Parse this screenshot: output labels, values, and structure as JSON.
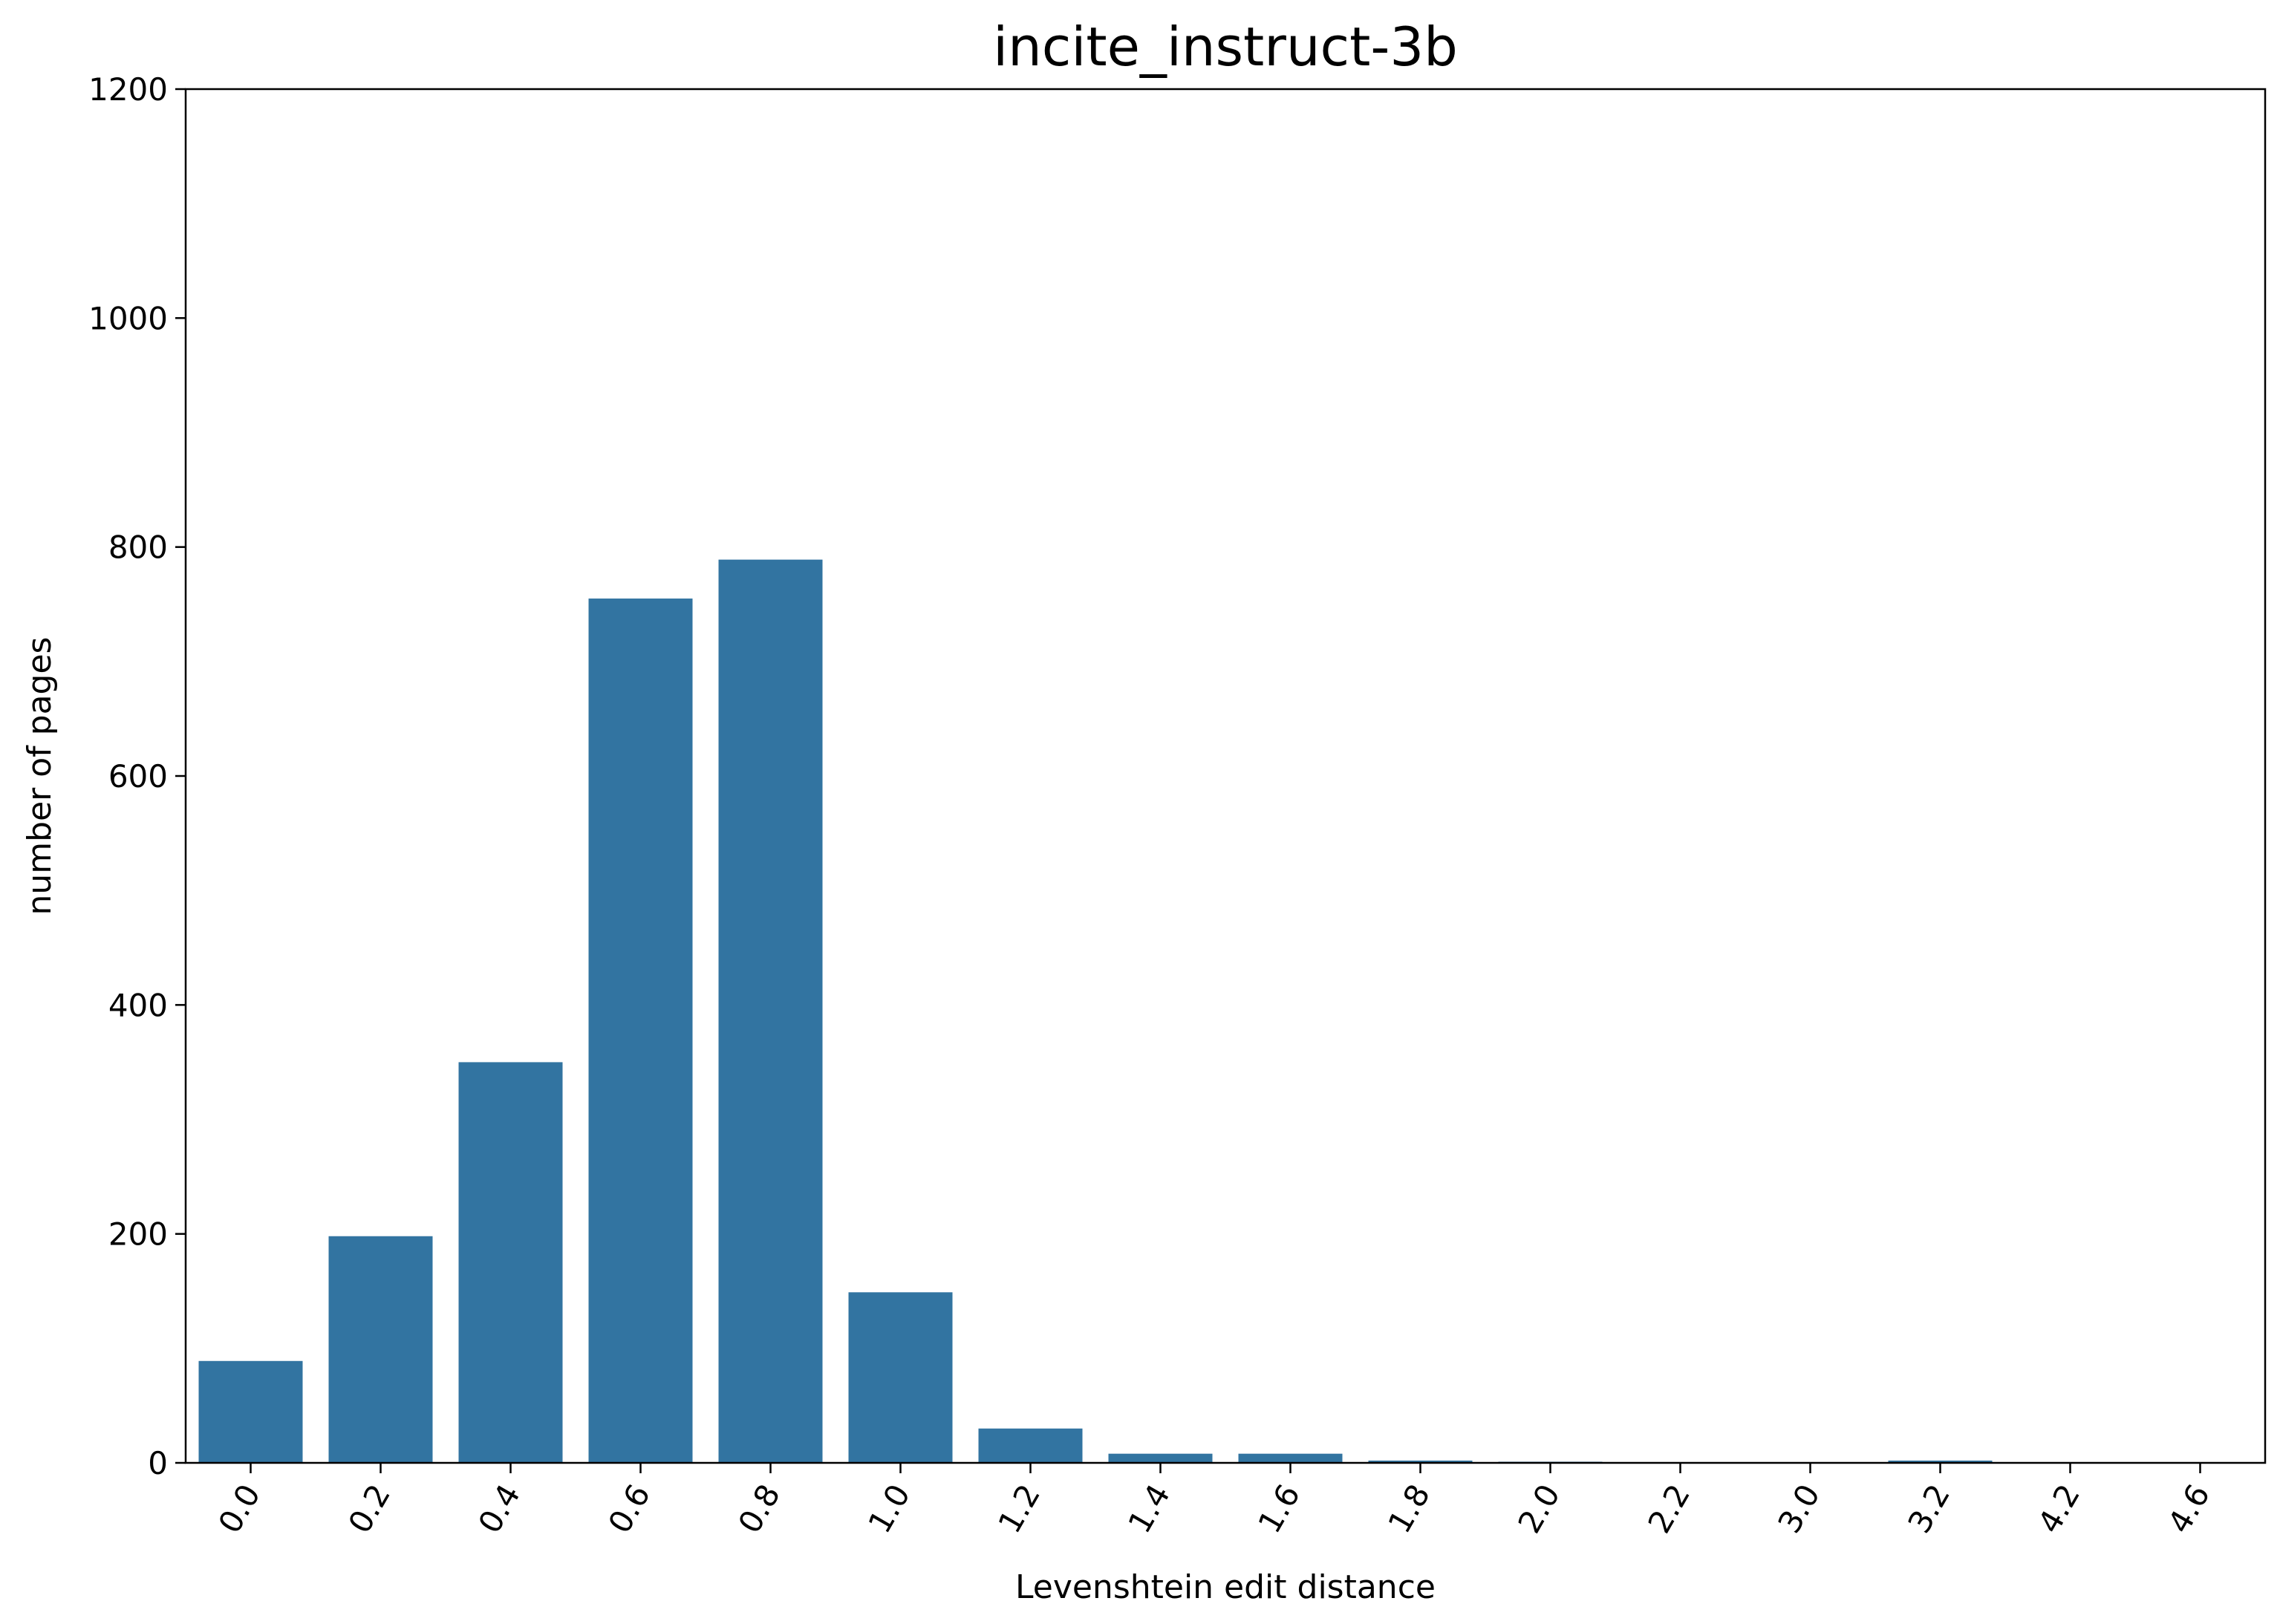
{
  "chart_data": {
    "type": "bar",
    "title": "incite_instruct-3b",
    "xlabel": "Levenshtein edit distance",
    "ylabel": "number of pages",
    "categories": [
      "0.0",
      "0.2",
      "0.4",
      "0.6",
      "0.8",
      "1.0",
      "1.2",
      "1.4",
      "1.6",
      "1.8",
      "2.0",
      "2.2",
      "3.0",
      "3.2",
      "4.2",
      "4.6"
    ],
    "values": [
      89,
      198,
      350,
      755,
      789,
      149,
      30,
      8,
      8,
      2,
      1,
      0,
      0,
      2,
      0,
      0
    ],
    "ylim": [
      0,
      1200
    ],
    "yticks": [
      "0",
      "200",
      "400",
      "600",
      "800",
      "1000",
      "1200"
    ],
    "bar_color": "#3274a1",
    "grid": false,
    "legend": "none"
  }
}
